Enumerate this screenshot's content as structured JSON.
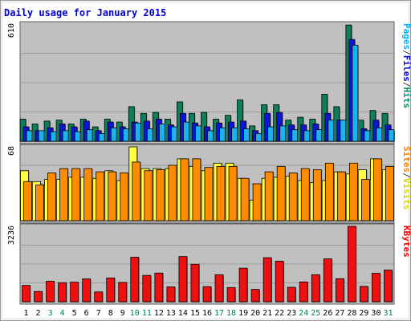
{
  "chart_data": {
    "type": "bar",
    "title": "Daily usage for January 2015",
    "categories": [
      "1",
      "2",
      "3",
      "4",
      "5",
      "6",
      "7",
      "8",
      "9",
      "10",
      "11",
      "12",
      "13",
      "14",
      "15",
      "16",
      "17",
      "18",
      "19",
      "20",
      "21",
      "22",
      "23",
      "24",
      "25",
      "26",
      "27",
      "28",
      "29",
      "30",
      "31"
    ],
    "weekend_days": [
      "3",
      "4",
      "10",
      "11",
      "17",
      "18",
      "24",
      "25",
      "31"
    ],
    "panels": [
      {
        "name": "hits-files-pages",
        "max_label": "610",
        "ylim": [
          0,
          610
        ],
        "grid": true,
        "legend": [
          {
            "label": "Pages",
            "color": "#00b3ff"
          },
          {
            "label": "/",
            "color": "#444444"
          },
          {
            "label": "Files",
            "color": "#0000dd"
          },
          {
            "label": "/",
            "color": "#444444"
          },
          {
            "label": "Hits",
            "color": "#009070"
          }
        ],
        "series": [
          {
            "name": "Hits",
            "color": "#0c7f5d",
            "values": [
              115,
              90,
              105,
              110,
              90,
              115,
              75,
              115,
              100,
              180,
              145,
              150,
              115,
              205,
              145,
              150,
              115,
              135,
              215,
              80,
              190,
              190,
              110,
              125,
              115,
              245,
              180,
              605,
              110,
              160,
              145
            ]
          },
          {
            "name": "Files",
            "color": "#0b16d8",
            "values": [
              75,
              55,
              70,
              90,
              75,
              105,
              55,
              100,
              75,
              100,
              105,
              115,
              85,
              145,
              95,
              75,
              95,
              100,
              105,
              55,
              145,
              150,
              85,
              85,
              90,
              145,
              110,
              530,
              65,
              110,
              85
            ]
          },
          {
            "name": "Pages",
            "color": "#1ab3f0",
            "values": [
              55,
              55,
              50,
              55,
              50,
              60,
              40,
              70,
              65,
              95,
              65,
              90,
              75,
              100,
              80,
              55,
              70,
              70,
              65,
              40,
              75,
              80,
              60,
              55,
              60,
              110,
              110,
              500,
              55,
              70,
              60
            ]
          }
        ]
      },
      {
        "name": "visits-sites",
        "max_label": "68",
        "ylim": [
          0,
          68
        ],
        "grid": true,
        "legend": [
          {
            "label": "Sites",
            "color": "#ff8000"
          },
          {
            "label": "/",
            "color": "#444444"
          },
          {
            "label": "Visits",
            "color": "#d8d800"
          }
        ],
        "series": [
          {
            "name": "Visits",
            "color": "#ffff40",
            "values": [
              46,
              36,
              38,
              38,
              40,
              40,
              39,
              46,
              37,
              68,
              48,
              48,
              48,
              57,
              50,
              46,
              53,
              53,
              39,
              19,
              39,
              40,
              41,
              37,
              35,
              37,
              45,
              43,
              47,
              57,
              47
            ]
          },
          {
            "name": "Sites",
            "color": "#ff8c00",
            "values": [
              36,
              33,
              44,
              48,
              48,
              48,
              45,
              45,
              44,
              54,
              46,
              47,
              51,
              57,
              57,
              49,
              50,
              50,
              39,
              34,
              45,
              50,
              44,
              48,
              47,
              53,
              45,
              53,
              38,
              57,
              50
            ]
          }
        ]
      },
      {
        "name": "kbytes",
        "max_label": "3236",
        "ylim": [
          0,
          3236
        ],
        "grid": true,
        "legend": [
          {
            "label": "KBytes",
            "color": "#ff0000"
          }
        ],
        "series": [
          {
            "name": "KBytes",
            "color": "#ee1010",
            "values": [
              700,
              440,
              880,
              820,
              840,
              980,
              420,
              1020,
              830,
              1910,
              1130,
              1230,
              640,
              1940,
              1610,
              650,
              1160,
              610,
              1440,
              530,
              1890,
              1740,
              620,
              850,
              1160,
              1840,
              990,
              3236,
              660,
              1220,
              1360
            ]
          }
        ]
      }
    ]
  }
}
